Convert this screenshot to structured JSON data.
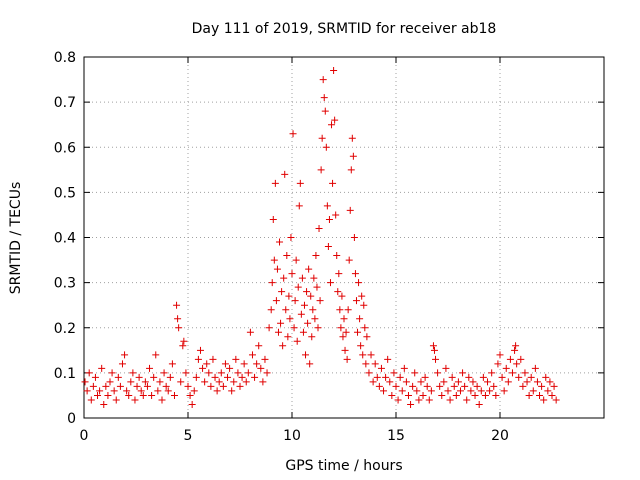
{
  "chart_data": {
    "type": "scatter",
    "title": "Day 111 of 2019, SRMTID for receiver ab18",
    "xlabel": "GPS time / hours",
    "ylabel": "SRMTID / TECUs",
    "xlim": [
      0,
      25
    ],
    "ylim": [
      0,
      0.8
    ],
    "xticks": [
      0,
      5,
      10,
      15,
      20
    ],
    "yticks": [
      0,
      0.1,
      0.2,
      0.3,
      0.4,
      0.5,
      0.6,
      0.7,
      0.8
    ],
    "xtick_labels": [
      "0",
      "5",
      "10",
      "15",
      "20"
    ],
    "ytick_labels": [
      "0",
      "0.1",
      "0.2",
      "0.3",
      "0.4",
      "0.5",
      "0.6",
      "0.7",
      "0.8"
    ],
    "grid": true,
    "marker": "+",
    "color": "#e00000",
    "series": [
      {
        "name": "SRMTID",
        "points": [
          [
            0.05,
            0.08
          ],
          [
            0.15,
            0.06
          ],
          [
            0.25,
            0.1
          ],
          [
            0.35,
            0.04
          ],
          [
            0.45,
            0.07
          ],
          [
            0.55,
            0.09
          ],
          [
            0.65,
            0.05
          ],
          [
            0.75,
            0.06
          ],
          [
            0.85,
            0.11
          ],
          [
            0.95,
            0.03
          ],
          [
            1.05,
            0.07
          ],
          [
            1.15,
            0.05
          ],
          [
            1.25,
            0.08
          ],
          [
            1.35,
            0.1
          ],
          [
            1.45,
            0.06
          ],
          [
            1.55,
            0.04
          ],
          [
            1.65,
            0.09
          ],
          [
            1.75,
            0.07
          ],
          [
            1.85,
            0.12
          ],
          [
            1.95,
            0.14
          ],
          [
            2.05,
            0.06
          ],
          [
            2.15,
            0.05
          ],
          [
            2.25,
            0.08
          ],
          [
            2.35,
            0.1
          ],
          [
            2.45,
            0.04
          ],
          [
            2.55,
            0.07
          ],
          [
            2.65,
            0.09
          ],
          [
            2.75,
            0.06
          ],
          [
            2.85,
            0.05
          ],
          [
            2.95,
            0.08
          ],
          [
            3.05,
            0.07
          ],
          [
            3.15,
            0.11
          ],
          [
            3.25,
            0.05
          ],
          [
            3.35,
            0.09
          ],
          [
            3.45,
            0.14
          ],
          [
            3.55,
            0.06
          ],
          [
            3.65,
            0.08
          ],
          [
            3.75,
            0.04
          ],
          [
            3.85,
            0.1
          ],
          [
            3.95,
            0.07
          ],
          [
            4.05,
            0.06
          ],
          [
            4.15,
            0.09
          ],
          [
            4.25,
            0.12
          ],
          [
            4.35,
            0.05
          ],
          [
            4.45,
            0.25
          ],
          [
            4.5,
            0.22
          ],
          [
            4.55,
            0.2
          ],
          [
            4.65,
            0.08
          ],
          [
            4.75,
            0.16
          ],
          [
            4.8,
            0.17
          ],
          [
            4.9,
            0.1
          ],
          [
            5.0,
            0.07
          ],
          [
            5.1,
            0.05
          ],
          [
            5.2,
            0.03
          ],
          [
            5.3,
            0.06
          ],
          [
            5.4,
            0.09
          ],
          [
            5.5,
            0.13
          ],
          [
            5.6,
            0.15
          ],
          [
            5.7,
            0.11
          ],
          [
            5.8,
            0.08
          ],
          [
            5.9,
            0.12
          ],
          [
            6.0,
            0.1
          ],
          [
            6.1,
            0.07
          ],
          [
            6.2,
            0.13
          ],
          [
            6.3,
            0.09
          ],
          [
            6.4,
            0.06
          ],
          [
            6.5,
            0.08
          ],
          [
            6.6,
            0.1
          ],
          [
            6.7,
            0.07
          ],
          [
            6.8,
            0.12
          ],
          [
            6.9,
            0.09
          ],
          [
            7.0,
            0.11
          ],
          [
            7.1,
            0.06
          ],
          [
            7.2,
            0.08
          ],
          [
            7.3,
            0.13
          ],
          [
            7.4,
            0.1
          ],
          [
            7.5,
            0.07
          ],
          [
            7.6,
            0.09
          ],
          [
            7.7,
            0.12
          ],
          [
            7.8,
            0.08
          ],
          [
            7.9,
            0.1
          ],
          [
            8.0,
            0.19
          ],
          [
            8.1,
            0.14
          ],
          [
            8.2,
            0.09
          ],
          [
            8.3,
            0.12
          ],
          [
            8.4,
            0.16
          ],
          [
            8.5,
            0.11
          ],
          [
            8.6,
            0.08
          ],
          [
            8.7,
            0.13
          ],
          [
            8.8,
            0.1
          ],
          [
            8.9,
            0.2
          ],
          [
            9.0,
            0.24
          ],
          [
            9.05,
            0.3
          ],
          [
            9.1,
            0.44
          ],
          [
            9.15,
            0.35
          ],
          [
            9.2,
            0.52
          ],
          [
            9.25,
            0.26
          ],
          [
            9.3,
            0.33
          ],
          [
            9.35,
            0.19
          ],
          [
            9.4,
            0.39
          ],
          [
            9.45,
            0.21
          ],
          [
            9.5,
            0.28
          ],
          [
            9.55,
            0.16
          ],
          [
            9.6,
            0.31
          ],
          [
            9.65,
            0.54
          ],
          [
            9.7,
            0.24
          ],
          [
            9.75,
            0.36
          ],
          [
            9.8,
            0.18
          ],
          [
            9.85,
            0.27
          ],
          [
            9.9,
            0.22
          ],
          [
            9.95,
            0.4
          ],
          [
            10.0,
            0.32
          ],
          [
            10.05,
            0.63
          ],
          [
            10.1,
            0.2
          ],
          [
            10.15,
            0.26
          ],
          [
            10.2,
            0.35
          ],
          [
            10.25,
            0.17
          ],
          [
            10.3,
            0.29
          ],
          [
            10.35,
            0.47
          ],
          [
            10.4,
            0.52
          ],
          [
            10.45,
            0.23
          ],
          [
            10.5,
            0.31
          ],
          [
            10.55,
            0.19
          ],
          [
            10.6,
            0.25
          ],
          [
            10.65,
            0.14
          ],
          [
            10.7,
            0.28
          ],
          [
            10.75,
            0.21
          ],
          [
            10.8,
            0.33
          ],
          [
            10.85,
            0.12
          ],
          [
            10.9,
            0.27
          ],
          [
            10.95,
            0.18
          ],
          [
            11.0,
            0.24
          ],
          [
            11.05,
            0.31
          ],
          [
            11.1,
            0.22
          ],
          [
            11.15,
            0.36
          ],
          [
            11.2,
            0.29
          ],
          [
            11.25,
            0.2
          ],
          [
            11.3,
            0.42
          ],
          [
            11.35,
            0.26
          ],
          [
            11.4,
            0.55
          ],
          [
            11.45,
            0.62
          ],
          [
            11.5,
            0.75
          ],
          [
            11.55,
            0.71
          ],
          [
            11.6,
            0.68
          ],
          [
            11.65,
            0.6
          ],
          [
            11.7,
            0.47
          ],
          [
            11.75,
            0.38
          ],
          [
            11.8,
            0.44
          ],
          [
            11.85,
            0.3
          ],
          [
            11.9,
            0.65
          ],
          [
            11.95,
            0.52
          ],
          [
            12.0,
            0.77
          ],
          [
            12.05,
            0.66
          ],
          [
            12.1,
            0.45
          ],
          [
            12.15,
            0.36
          ],
          [
            12.2,
            0.28
          ],
          [
            12.25,
            0.32
          ],
          [
            12.3,
            0.24
          ],
          [
            12.35,
            0.2
          ],
          [
            12.4,
            0.27
          ],
          [
            12.45,
            0.18
          ],
          [
            12.5,
            0.22
          ],
          [
            12.55,
            0.15
          ],
          [
            12.6,
            0.19
          ],
          [
            12.65,
            0.13
          ],
          [
            12.7,
            0.24
          ],
          [
            12.75,
            0.35
          ],
          [
            12.8,
            0.46
          ],
          [
            12.85,
            0.55
          ],
          [
            12.9,
            0.62
          ],
          [
            12.95,
            0.58
          ],
          [
            13.0,
            0.4
          ],
          [
            13.05,
            0.32
          ],
          [
            13.1,
            0.26
          ],
          [
            13.15,
            0.19
          ],
          [
            13.2,
            0.3
          ],
          [
            13.25,
            0.22
          ],
          [
            13.3,
            0.16
          ],
          [
            13.35,
            0.27
          ],
          [
            13.4,
            0.14
          ],
          [
            13.45,
            0.25
          ],
          [
            13.5,
            0.2
          ],
          [
            13.55,
            0.12
          ],
          [
            13.6,
            0.18
          ],
          [
            13.7,
            0.1
          ],
          [
            13.8,
            0.14
          ],
          [
            13.9,
            0.08
          ],
          [
            14.0,
            0.12
          ],
          [
            14.1,
            0.09
          ],
          [
            14.2,
            0.07
          ],
          [
            14.3,
            0.11
          ],
          [
            14.4,
            0.06
          ],
          [
            14.5,
            0.09
          ],
          [
            14.6,
            0.13
          ],
          [
            14.7,
            0.08
          ],
          [
            14.8,
            0.05
          ],
          [
            14.9,
            0.1
          ],
          [
            15.0,
            0.07
          ],
          [
            15.1,
            0.04
          ],
          [
            15.2,
            0.09
          ],
          [
            15.3,
            0.06
          ],
          [
            15.4,
            0.11
          ],
          [
            15.5,
            0.08
          ],
          [
            15.6,
            0.05
          ],
          [
            15.7,
            0.03
          ],
          [
            15.8,
            0.07
          ],
          [
            15.9,
            0.1
          ],
          [
            16.0,
            0.06
          ],
          [
            16.1,
            0.04
          ],
          [
            16.2,
            0.08
          ],
          [
            16.3,
            0.05
          ],
          [
            16.4,
            0.09
          ],
          [
            16.5,
            0.07
          ],
          [
            16.6,
            0.04
          ],
          [
            16.7,
            0.06
          ],
          [
            16.8,
            0.16
          ],
          [
            16.85,
            0.15
          ],
          [
            16.9,
            0.13
          ],
          [
            17.0,
            0.1
          ],
          [
            17.1,
            0.07
          ],
          [
            17.2,
            0.05
          ],
          [
            17.3,
            0.08
          ],
          [
            17.4,
            0.11
          ],
          [
            17.5,
            0.06
          ],
          [
            17.6,
            0.04
          ],
          [
            17.7,
            0.09
          ],
          [
            17.8,
            0.07
          ],
          [
            17.9,
            0.05
          ],
          [
            18.0,
            0.08
          ],
          [
            18.1,
            0.06
          ],
          [
            18.2,
            0.1
          ],
          [
            18.3,
            0.07
          ],
          [
            18.4,
            0.04
          ],
          [
            18.5,
            0.09
          ],
          [
            18.6,
            0.06
          ],
          [
            18.7,
            0.08
          ],
          [
            18.8,
            0.05
          ],
          [
            18.9,
            0.07
          ],
          [
            19.0,
            0.03
          ],
          [
            19.1,
            0.06
          ],
          [
            19.2,
            0.09
          ],
          [
            19.3,
            0.05
          ],
          [
            19.4,
            0.08
          ],
          [
            19.5,
            0.06
          ],
          [
            19.6,
            0.1
          ],
          [
            19.7,
            0.07
          ],
          [
            19.8,
            0.05
          ],
          [
            19.9,
            0.12
          ],
          [
            20.0,
            0.14
          ],
          [
            20.1,
            0.09
          ],
          [
            20.2,
            0.06
          ],
          [
            20.3,
            0.11
          ],
          [
            20.4,
            0.08
          ],
          [
            20.5,
            0.13
          ],
          [
            20.6,
            0.1
          ],
          [
            20.7,
            0.15
          ],
          [
            20.75,
            0.16
          ],
          [
            20.8,
            0.12
          ],
          [
            20.9,
            0.09
          ],
          [
            21.0,
            0.13
          ],
          [
            21.1,
            0.07
          ],
          [
            21.2,
            0.1
          ],
          [
            21.3,
            0.08
          ],
          [
            21.4,
            0.05
          ],
          [
            21.5,
            0.09
          ],
          [
            21.6,
            0.06
          ],
          [
            21.7,
            0.11
          ],
          [
            21.8,
            0.08
          ],
          [
            21.9,
            0.05
          ],
          [
            22.0,
            0.07
          ],
          [
            22.1,
            0.04
          ],
          [
            22.2,
            0.09
          ],
          [
            22.3,
            0.06
          ],
          [
            22.4,
            0.08
          ],
          [
            22.5,
            0.05
          ],
          [
            22.6,
            0.07
          ],
          [
            22.7,
            0.04
          ]
        ]
      }
    ]
  }
}
